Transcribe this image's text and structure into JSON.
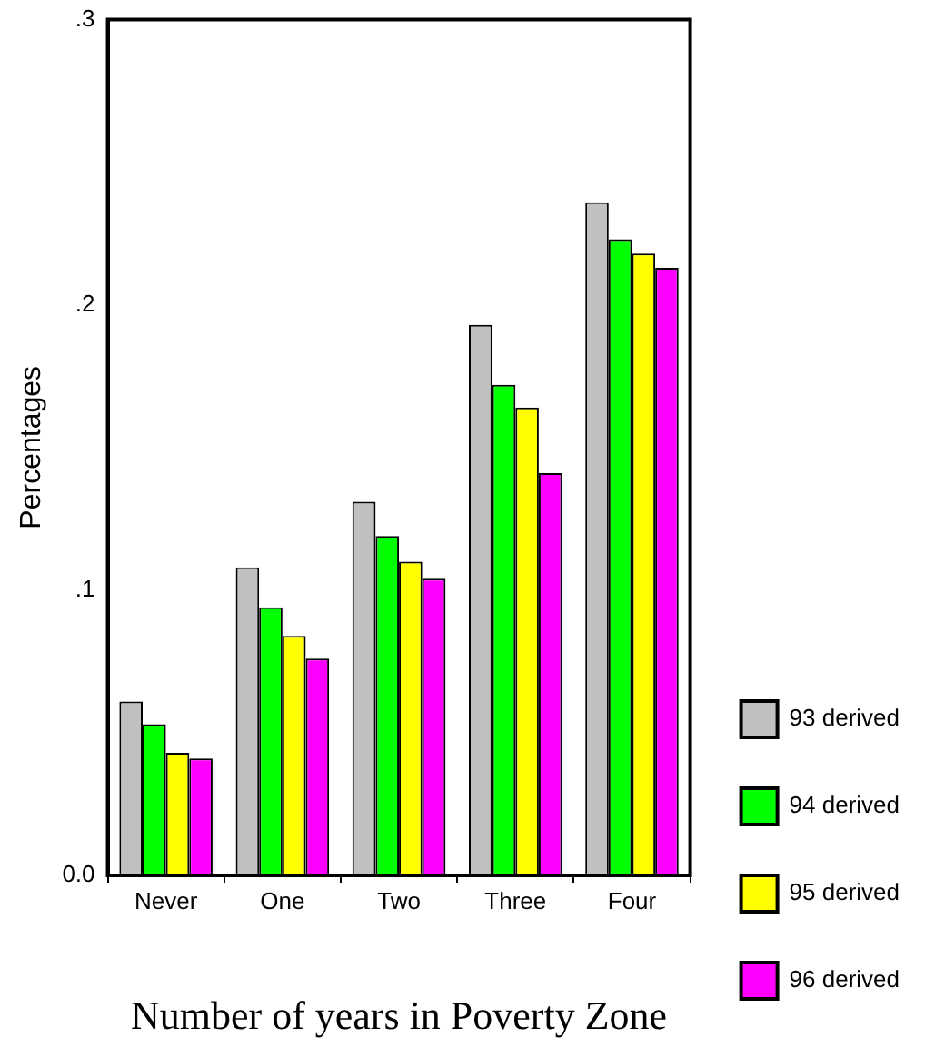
{
  "chart_data": {
    "type": "bar",
    "xlabel": "Number of years in Poverty Zone",
    "ylabel": "Percentages",
    "categories": [
      "Never",
      "One",
      "Two",
      "Three",
      "Four"
    ],
    "series": [
      {
        "name": "93 derived",
        "color": "#c0c0c0",
        "values": [
          0.061,
          0.108,
          0.131,
          0.193,
          0.236
        ]
      },
      {
        "name": "94 derived",
        "color": "#00ff00",
        "values": [
          0.053,
          0.094,
          0.119,
          0.172,
          0.223
        ]
      },
      {
        "name": "95 derived",
        "color": "#ffff00",
        "values": [
          0.043,
          0.084,
          0.11,
          0.164,
          0.218
        ]
      },
      {
        "name": "96 derived",
        "color": "#ff00ff",
        "values": [
          0.041,
          0.076,
          0.104,
          0.141,
          0.213
        ]
      }
    ],
    "ylim": [
      0,
      0.3
    ],
    "yticks": [
      {
        "value": 0,
        "label": "0.0"
      },
      {
        "value": 0.1,
        "label": ".1"
      },
      {
        "value": 0.2,
        "label": ".2"
      },
      {
        "value": 0.3,
        "label": ".3"
      }
    ],
    "grid": false,
    "legend": "bottom right"
  }
}
